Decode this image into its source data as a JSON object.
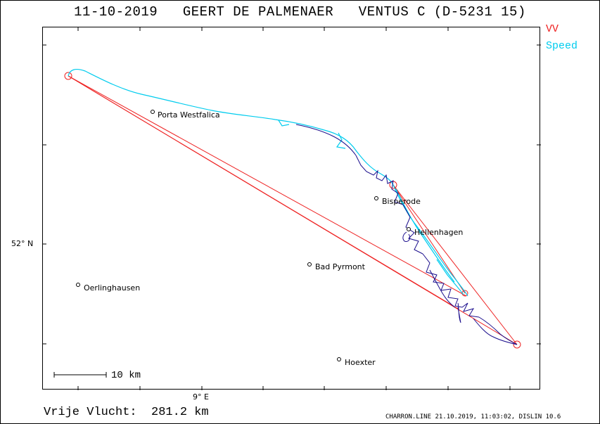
{
  "title": "11-10-2019   GEERT DE PALMENAER   VENTUS C (D-5231 15)",
  "legend": {
    "vv": "VV",
    "vv_color": "#ee2222",
    "speed": "Speed",
    "speed_color": "#00ccee"
  },
  "axes": {
    "lat_label": "52° N",
    "lon_label": "9° E"
  },
  "scale": {
    "label": "10 km"
  },
  "towns": [
    {
      "name": "Porta Westfalica"
    },
    {
      "name": "Bisperode"
    },
    {
      "name": "Hellenhagen"
    },
    {
      "name": "Bad Pyrmont"
    },
    {
      "name": "Oerlinghausen"
    },
    {
      "name": "Hoexter"
    }
  ],
  "free_flight": "Vrije Vlucht:  281.2 km",
  "footer": "CHARRON.LINE 21.10.2019, 11:03:02, DISLIN 10.6",
  "colors": {
    "track_dark": "#1a0d8c",
    "track_speed": "#00ccee",
    "task": "#ee2222"
  }
}
